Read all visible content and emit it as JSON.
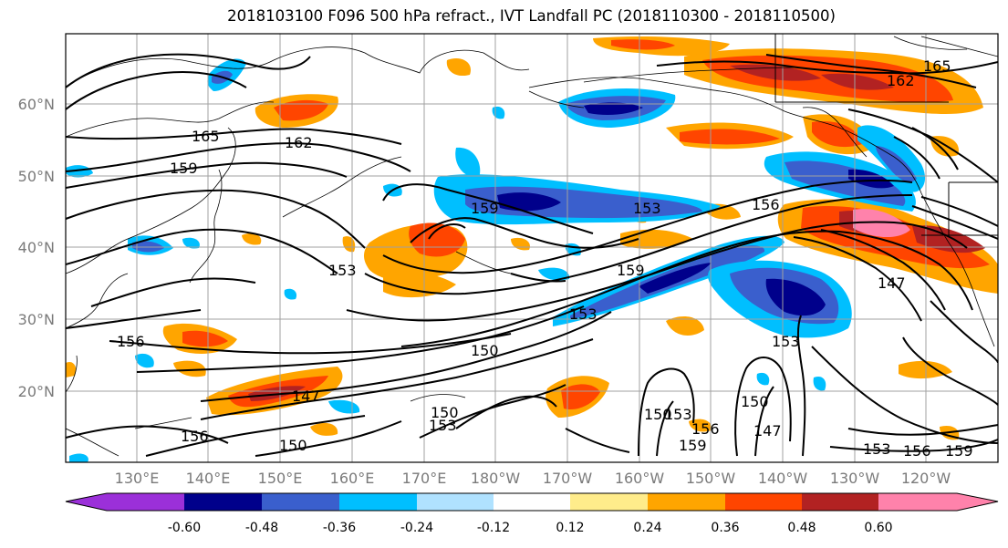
{
  "title": "2018103100 F096 500 hPa refract., IVT Landfall PC (2018110300 - 2018110500)",
  "lat_labels": [
    "60°N",
    "50°N",
    "40°N",
    "30°N",
    "20°N"
  ],
  "lon_labels": [
    "130°E",
    "140°E",
    "150°E",
    "160°E",
    "170°E",
    "180°W",
    "170°W",
    "160°W",
    "150°W",
    "140°W",
    "130°W",
    "120°W"
  ],
  "colorbar": {
    "ticks": [
      "-0.60",
      "-0.48",
      "-0.36",
      "-0.24",
      "-0.12",
      "0.12",
      "0.24",
      "0.36",
      "0.48",
      "0.60"
    ],
    "colors": [
      "#9b30d9",
      "#00008b",
      "#3a5fcd",
      "#00bfff",
      "#b0e2ff",
      "#ffffff",
      "#ffec8b",
      "#ffa500",
      "#ff4500",
      "#b22222",
      "#ff82ab"
    ]
  },
  "contour_labels": [
    "165",
    "162",
    "159",
    "159",
    "153",
    "153",
    "156",
    "159",
    "153",
    "150",
    "147",
    "156",
    "150",
    "150",
    "153",
    "150",
    "153",
    "156",
    "159",
    "150",
    "147",
    "153",
    "147",
    "153",
    "156",
    "159",
    "165",
    "162",
    "156"
  ]
}
